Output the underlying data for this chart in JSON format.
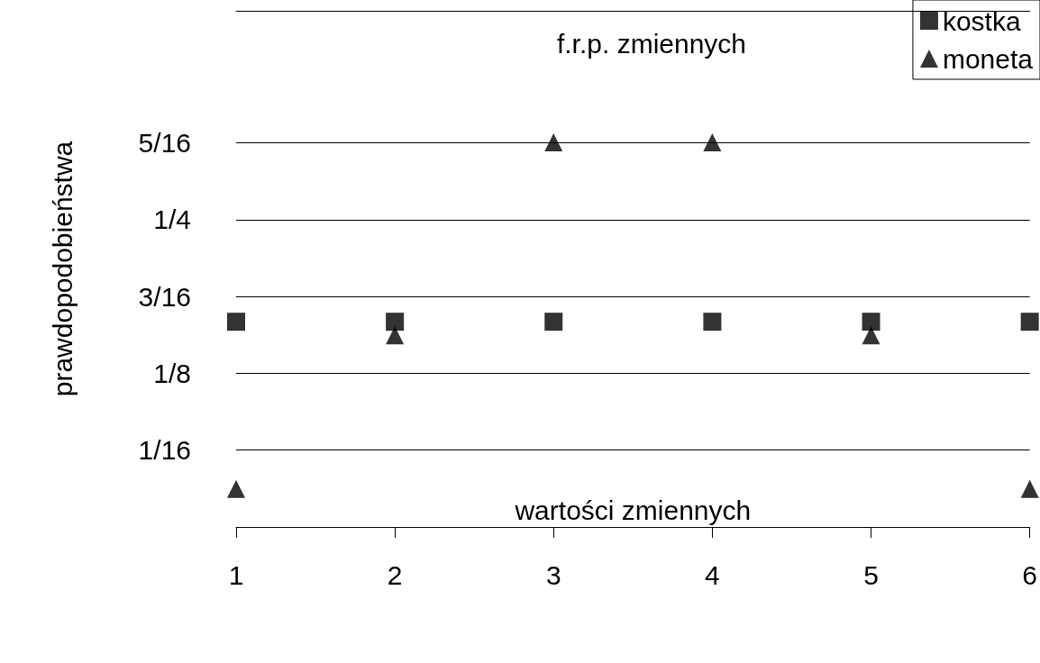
{
  "chart_data": {
    "type": "scatter",
    "title": "f.r.p. zmiennych",
    "xlabel": "wartości zmiennych",
    "ylabel": "prawdopodobieństwa",
    "x": [
      1,
      2,
      3,
      4,
      5,
      6
    ],
    "series": [
      {
        "name": "kostka",
        "color": "#000000",
        "marker": "square",
        "values": [
          0.167,
          0.167,
          0.167,
          0.167,
          0.167,
          0.167
        ]
      },
      {
        "name": "moneta",
        "color": "#000000",
        "marker": "triangle",
        "values": [
          0.031,
          0.156,
          0.313,
          0.313,
          0.156,
          0.031
        ]
      }
    ],
    "xlim": [
      1,
      6
    ],
    "xticks": [
      1,
      2,
      3,
      4,
      5,
      6
    ],
    "ylim": [
      0,
      0.42
    ],
    "yticks": [
      {
        "value": 0.0625,
        "label": "1/16"
      },
      {
        "value": 0.125,
        "label": "1/8"
      },
      {
        "value": 0.1875,
        "label": "3/16"
      },
      {
        "value": 0.25,
        "label": "1/4"
      },
      {
        "value": 0.3125,
        "label": "5/16"
      }
    ],
    "grid": "y",
    "legend": "top right"
  }
}
